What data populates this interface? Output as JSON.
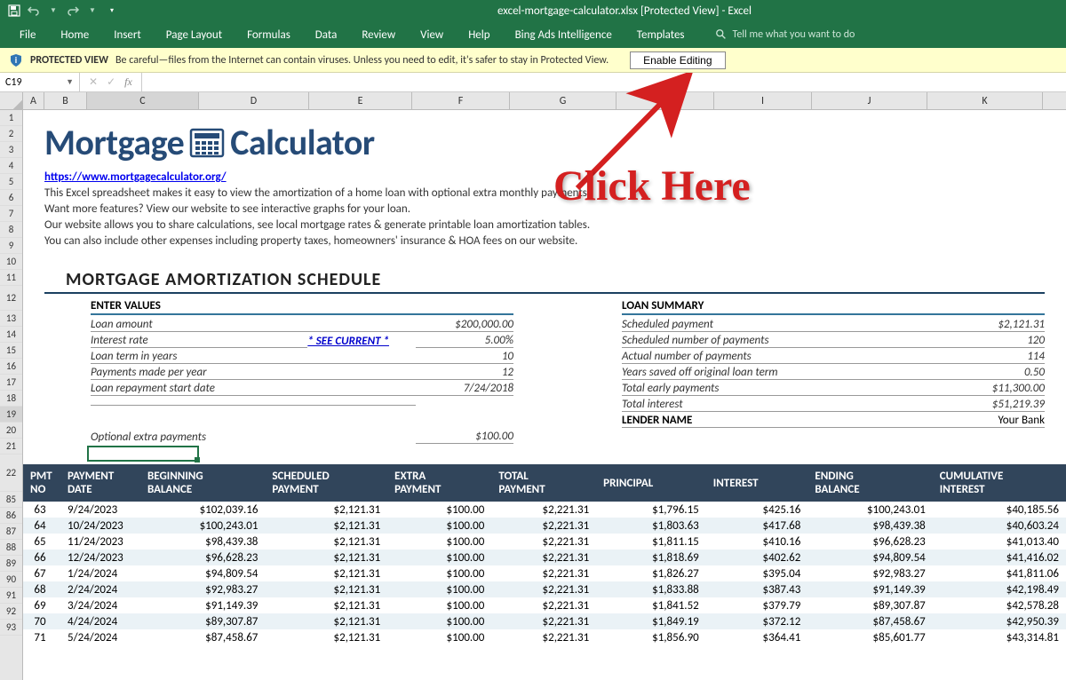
{
  "titlebar": {
    "filename": "excel-mortgage-calculator.xlsx  [Protected View]  -  Excel"
  },
  "ribbon": {
    "tabs": [
      "File",
      "Home",
      "Insert",
      "Page Layout",
      "Formulas",
      "Data",
      "Review",
      "View",
      "Help",
      "Bing Ads Intelligence",
      "Templates"
    ],
    "tellme": "Tell me what you want to do"
  },
  "protected": {
    "label": "PROTECTED VIEW",
    "msg": "Be careful—files from the Internet can contain viruses. Unless you need to edit, it's safer to stay in Protected View.",
    "button": "Enable Editing"
  },
  "namebox": "C19",
  "columns": [
    {
      "l": "A",
      "w": 24
    },
    {
      "l": "B",
      "w": 48
    },
    {
      "l": "C",
      "w": 126
    },
    {
      "l": "D",
      "w": 124
    },
    {
      "l": "E",
      "w": 116
    },
    {
      "l": "F",
      "w": 110
    },
    {
      "l": "G",
      "w": 120
    },
    {
      "l": "H",
      "w": 110
    },
    {
      "l": "I",
      "w": 110
    },
    {
      "l": "J",
      "w": 130
    },
    {
      "l": "K",
      "w": 130
    }
  ],
  "rows_top": [
    1,
    2,
    3,
    4,
    5,
    6,
    7,
    8,
    9,
    10,
    11,
    12,
    13,
    14,
    15,
    16,
    17,
    18,
    19,
    20,
    21,
    22
  ],
  "rows_bottom": [
    85,
    86,
    87,
    88,
    89,
    90,
    91,
    92,
    93
  ],
  "logo": {
    "part1": "Mortgage",
    "part2": "Calculator"
  },
  "link": "https://www.mortgagecalculator.org/",
  "desc": [
    "This Excel spreadsheet makes it easy to view the amortization of a home loan with optional extra monthly payments.",
    "Want more features? View our website to see interactive graphs for your loan.",
    "Our website allows you to share calculations, see local mortgage rates & generate printable loan amortization tables.",
    "You can also include other expenses including property taxes, homeowners' insurance & HOA fees on our website."
  ],
  "sched_title": "MORTGAGE AMORTIZATION SCHEDULE",
  "enter_values": {
    "header": "ENTER VALUES",
    "rows": [
      {
        "label": "Loan amount",
        "val": "$200,000.00"
      },
      {
        "label": "Interest rate",
        "mid": "* SEE CURRENT *",
        "val": "5.00%"
      },
      {
        "label": "Loan term in years",
        "val": "10"
      },
      {
        "label": "Payments made per year",
        "val": "12"
      },
      {
        "label": "Loan repayment start date",
        "val": "7/24/2018"
      }
    ],
    "extra_label": "Optional extra payments",
    "extra_val": "$100.00"
  },
  "loan_summary": {
    "header": "LOAN SUMMARY",
    "rows": [
      {
        "label": "Scheduled payment",
        "val": "$2,121.31"
      },
      {
        "label": "Scheduled number of payments",
        "val": "120"
      },
      {
        "label": "Actual number of payments",
        "val": "114"
      },
      {
        "label": "Years saved off original loan term",
        "val": "0.50"
      },
      {
        "label": "Total early payments",
        "val": "$11,300.00"
      },
      {
        "label": "Total interest",
        "val": "$51,219.39"
      }
    ],
    "lender_label": "LENDER NAME",
    "lender_val": "Your Bank"
  },
  "table": {
    "headers": [
      "PMT NO",
      "PAYMENT DATE",
      "BEGINNING BALANCE",
      "SCHEDULED PAYMENT",
      "EXTRA PAYMENT",
      "TOTAL PAYMENT",
      "PRINCIPAL",
      "INTEREST",
      "ENDING BALANCE",
      "CUMULATIVE INTEREST"
    ],
    "rows": [
      [
        63,
        "9/24/2023",
        "$102,039.16",
        "$2,121.31",
        "$100.00",
        "$2,221.31",
        "$1,796.15",
        "$425.16",
        "$100,243.01",
        "$40,185.56"
      ],
      [
        64,
        "10/24/2023",
        "$100,243.01",
        "$2,121.31",
        "$100.00",
        "$2,221.31",
        "$1,803.63",
        "$417.68",
        "$98,439.38",
        "$40,603.24"
      ],
      [
        65,
        "11/24/2023",
        "$98,439.38",
        "$2,121.31",
        "$100.00",
        "$2,221.31",
        "$1,811.15",
        "$410.16",
        "$96,628.23",
        "$41,013.40"
      ],
      [
        66,
        "12/24/2023",
        "$96,628.23",
        "$2,121.31",
        "$100.00",
        "$2,221.31",
        "$1,818.69",
        "$402.62",
        "$94,809.54",
        "$41,416.02"
      ],
      [
        67,
        "1/24/2024",
        "$94,809.54",
        "$2,121.31",
        "$100.00",
        "$2,221.31",
        "$1,826.27",
        "$395.04",
        "$92,983.27",
        "$41,811.06"
      ],
      [
        68,
        "2/24/2024",
        "$92,983.27",
        "$2,121.31",
        "$100.00",
        "$2,221.31",
        "$1,833.88",
        "$387.43",
        "$91,149.39",
        "$42,198.49"
      ],
      [
        69,
        "3/24/2024",
        "$91,149.39",
        "$2,121.31",
        "$100.00",
        "$2,221.31",
        "$1,841.52",
        "$379.79",
        "$89,307.87",
        "$42,578.28"
      ],
      [
        70,
        "4/24/2024",
        "$89,307.87",
        "$2,121.31",
        "$100.00",
        "$2,221.31",
        "$1,849.19",
        "$372.12",
        "$87,458.67",
        "$42,950.39"
      ],
      [
        71,
        "5/24/2024",
        "$87,458.67",
        "$2,121.31",
        "$100.00",
        "$2,221.31",
        "$1,856.90",
        "$364.41",
        "$85,601.77",
        "$43,314.81"
      ]
    ]
  },
  "annotation": "Click Here",
  "colors": {
    "excel_green": "#217346",
    "ribbon_bg": "#217346",
    "pv_bg": "#ffffcc",
    "logo_blue": "#264b77",
    "table_header_bg": "#31455b",
    "table_stripe": "#eaf2f6",
    "accent_teal": "#34759a",
    "arrow_red": "#d42020"
  }
}
